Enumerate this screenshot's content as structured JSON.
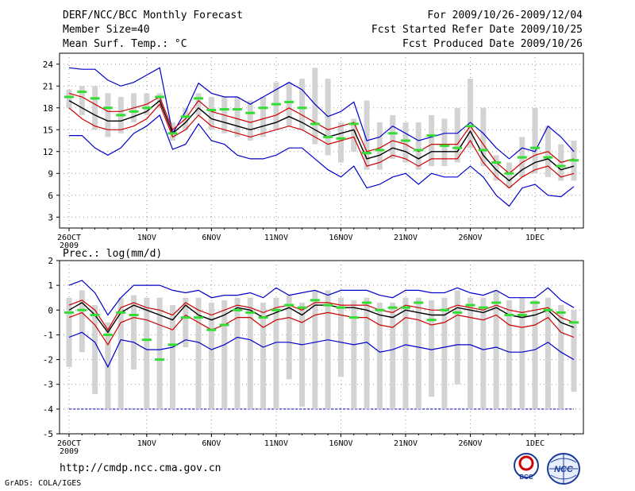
{
  "header": {
    "title": "DERF/NCC/BCC Monthly Forecast",
    "member": "Member Size=40",
    "variable": "Mean Surf. Temp.: °C",
    "period": "For 2009/10/26-2009/12/04",
    "start": "Fcst Started Refer Date 2009/10/25",
    "produced": "Fcst Produced Date 2009/10/26"
  },
  "footer": {
    "url": "http://cmdp.ncc.cma.gov.cn",
    "credit": "GrADS: COLA/IGES",
    "logo1": "BCC",
    "logo2": "NCC"
  },
  "colors": {
    "spread": "#d3d3d3",
    "extreme": "#0000cc",
    "sigma": "#cc0000",
    "mean": "#000000",
    "obs": "#33dd33",
    "grid": "#999999"
  },
  "chart_data": [
    {
      "type": "line",
      "title": "Mean Surf. Temp.: °C",
      "x_tick_labels": [
        "26OCT",
        "1NOV",
        "6NOV",
        "11NOV",
        "16NOV",
        "21NOV",
        "26NOV",
        "1DEC"
      ],
      "x_tick_days": [
        1,
        7,
        12,
        17,
        22,
        27,
        32,
        37
      ],
      "year_label": "2009",
      "days": 40,
      "ylim": [
        1.5,
        25.5
      ],
      "yticks": [
        3,
        6,
        9,
        12,
        15,
        18,
        21,
        24
      ],
      "grid": true,
      "series": [
        {
          "name": "max",
          "values": [
            23.5,
            23.3,
            23.3,
            21.8,
            21.0,
            21.5,
            22.5,
            23.5,
            14.5,
            17.5,
            21.4,
            20.0,
            19.5,
            19.5,
            18.5,
            19.5,
            20.5,
            21.5,
            20.5,
            18.5,
            16.8,
            17.5,
            18.8,
            13.5,
            14.0,
            15.5,
            14.5,
            13.5,
            14.0,
            14.5,
            14.5,
            16.0,
            14.5,
            12.5,
            11.0,
            12.5,
            12.0,
            15.5,
            14.0,
            12.0
          ]
        },
        {
          "name": "plus_sigma",
          "values": [
            20.0,
            19.5,
            18.5,
            17.5,
            17.5,
            18.0,
            18.5,
            19.5,
            15.0,
            16.5,
            19.0,
            17.5,
            17.0,
            16.5,
            16.0,
            16.5,
            17.0,
            18.0,
            17.0,
            16.0,
            15.0,
            15.5,
            16.0,
            12.0,
            12.5,
            13.5,
            13.0,
            12.0,
            13.0,
            13.0,
            13.0,
            15.5,
            13.0,
            10.5,
            9.0,
            10.5,
            11.5,
            12.0,
            10.5,
            11.0
          ]
        },
        {
          "name": "mean",
          "values": [
            19.0,
            18.0,
            17.0,
            16.2,
            16.2,
            16.8,
            17.5,
            19.0,
            14.5,
            16.0,
            18.0,
            16.5,
            16.0,
            15.5,
            15.0,
            15.5,
            16.0,
            16.8,
            16.0,
            15.0,
            14.0,
            14.5,
            15.0,
            11.0,
            11.5,
            12.5,
            12.0,
            11.0,
            12.0,
            12.0,
            12.0,
            14.8,
            11.5,
            9.5,
            8.0,
            9.5,
            10.5,
            11.0,
            9.5,
            10.0
          ]
        },
        {
          "name": "minus_sigma",
          "values": [
            18.0,
            16.5,
            15.5,
            15.0,
            15.0,
            15.5,
            16.5,
            18.5,
            14.0,
            15.0,
            17.0,
            15.5,
            15.0,
            14.5,
            14.0,
            14.5,
            15.0,
            15.5,
            15.0,
            14.0,
            13.0,
            13.5,
            14.0,
            10.0,
            10.5,
            11.5,
            11.0,
            10.0,
            11.0,
            11.0,
            11.0,
            13.5,
            10.5,
            8.5,
            7.0,
            8.5,
            9.5,
            10.0,
            8.5,
            9.0
          ]
        },
        {
          "name": "min",
          "values": [
            14.2,
            14.2,
            12.5,
            11.5,
            12.5,
            14.5,
            15.5,
            17.0,
            12.3,
            13.0,
            15.8,
            13.5,
            13.0,
            11.5,
            11.0,
            11.0,
            11.5,
            12.5,
            12.5,
            11.0,
            9.5,
            8.5,
            10.0,
            7.0,
            7.5,
            8.5,
            9.0,
            7.5,
            9.0,
            8.5,
            8.5,
            10.0,
            8.5,
            6.0,
            4.5,
            7.0,
            7.5,
            6.0,
            5.8,
            7.2
          ]
        },
        {
          "name": "observed",
          "values": [
            19.5,
            20.2,
            19.3,
            18.0,
            17.0,
            17.5,
            18.0,
            19.5,
            14.5,
            16.8,
            19.3,
            17.7,
            17.8,
            17.8,
            17.3,
            18.0,
            18.5,
            18.8,
            18.0,
            15.8,
            14.0,
            13.8,
            15.8,
            11.8,
            12.2,
            14.5,
            13.5,
            12.2,
            14.2,
            12.8,
            12.5,
            15.5,
            12.2,
            10.5,
            9.0,
            11.2,
            12.5,
            11.2,
            10.0,
            10.8
          ]
        }
      ],
      "box_high": [
        20.5,
        21.0,
        21.0,
        20.0,
        19.5,
        20.0,
        20.0,
        20.0,
        16.0,
        18.0,
        20.0,
        19.5,
        19.5,
        19.5,
        19.0,
        19.5,
        21.5,
        21.5,
        22.0,
        23.5,
        22.0,
        16.0,
        16.5,
        19.0,
        16.0,
        17.0,
        16.0,
        16.0,
        17.0,
        16.5,
        18.0,
        22.0,
        18.0,
        11.5,
        10.5,
        14.0,
        18.0,
        15.5,
        13.0,
        13.5
      ],
      "box_low": [
        18.0,
        17.0,
        15.0,
        14.0,
        14.5,
        16.0,
        17.0,
        18.0,
        13.5,
        15.0,
        17.0,
        15.0,
        14.5,
        14.0,
        13.5,
        14.0,
        15.0,
        15.5,
        15.0,
        13.0,
        11.5,
        10.5,
        12.0,
        9.5,
        9.5,
        11.0,
        10.5,
        9.5,
        10.0,
        10.0,
        10.5,
        12.5,
        10.0,
        8.0,
        7.0,
        8.5,
        9.0,
        8.5,
        8.0,
        8.0
      ]
    },
    {
      "type": "line",
      "title": "Prec.: log(mm/d)",
      "x_tick_labels": [
        "26OCT",
        "1NOV",
        "6NOV",
        "11NOV",
        "16NOV",
        "21NOV",
        "26NOV",
        "1DEC"
      ],
      "x_tick_days": [
        1,
        7,
        12,
        17,
        22,
        27,
        32,
        37
      ],
      "year_label": "2009",
      "days": 40,
      "ylim": [
        -5,
        2
      ],
      "yticks": [
        -5,
        -4,
        -3,
        -2,
        -1,
        0,
        1,
        2
      ],
      "grid": true,
      "baseline": -4,
      "series": [
        {
          "name": "max",
          "values": [
            1.0,
            1.2,
            0.7,
            -0.2,
            0.5,
            1.0,
            1.0,
            1.0,
            0.8,
            0.7,
            0.8,
            0.5,
            0.6,
            0.6,
            0.7,
            0.5,
            0.9,
            0.6,
            0.7,
            0.8,
            0.6,
            0.8,
            0.8,
            0.8,
            0.6,
            0.5,
            0.8,
            0.8,
            0.7,
            0.7,
            0.9,
            0.7,
            0.6,
            0.8,
            0.5,
            0.5,
            0.5,
            0.9,
            0.4,
            0.1
          ]
        },
        {
          "name": "plus_sigma",
          "values": [
            0.2,
            0.4,
            0.0,
            -0.8,
            0.1,
            0.3,
            0.1,
            0.0,
            -0.2,
            0.3,
            0.0,
            -0.2,
            0.0,
            0.2,
            0.1,
            -0.1,
            0.1,
            0.2,
            0.0,
            0.3,
            0.3,
            0.2,
            0.2,
            0.2,
            0.0,
            -0.1,
            0.2,
            0.1,
            0.0,
            0.0,
            0.2,
            0.1,
            0.0,
            0.2,
            0.0,
            -0.1,
            0.0,
            0.1,
            -0.3,
            -0.5
          ]
        },
        {
          "name": "mean",
          "values": [
            0.0,
            0.3,
            -0.2,
            -0.9,
            -0.1,
            0.2,
            0.0,
            -0.2,
            -0.4,
            0.2,
            -0.2,
            -0.4,
            -0.2,
            0.1,
            0.0,
            -0.3,
            -0.1,
            0.1,
            -0.2,
            0.2,
            0.2,
            0.1,
            0.1,
            0.0,
            -0.2,
            -0.3,
            0.0,
            -0.1,
            -0.2,
            -0.2,
            0.1,
            0.0,
            -0.1,
            0.1,
            -0.2,
            -0.3,
            -0.2,
            0.0,
            -0.5,
            -0.7
          ]
        },
        {
          "name": "minus_sigma",
          "values": [
            -0.3,
            -0.1,
            -0.6,
            -1.4,
            -0.5,
            -0.3,
            -0.4,
            -0.6,
            -0.8,
            -0.2,
            -0.5,
            -0.8,
            -0.6,
            -0.3,
            -0.3,
            -0.7,
            -0.4,
            -0.3,
            -0.5,
            -0.2,
            -0.1,
            -0.2,
            -0.3,
            -0.3,
            -0.6,
            -0.7,
            -0.3,
            -0.4,
            -0.6,
            -0.5,
            -0.2,
            -0.3,
            -0.4,
            -0.2,
            -0.6,
            -0.7,
            -0.6,
            -0.3,
            -0.9,
            -1.1
          ]
        },
        {
          "name": "min",
          "values": [
            -1.1,
            -0.9,
            -1.3,
            -2.3,
            -1.2,
            -1.3,
            -1.6,
            -1.6,
            -1.5,
            -1.2,
            -1.3,
            -1.6,
            -1.4,
            -1.1,
            -1.2,
            -1.5,
            -1.3,
            -1.3,
            -1.4,
            -1.3,
            -1.2,
            -1.3,
            -1.4,
            -1.3,
            -1.7,
            -1.6,
            -1.4,
            -1.5,
            -1.6,
            -1.5,
            -1.4,
            -1.4,
            -1.6,
            -1.5,
            -1.7,
            -1.7,
            -1.6,
            -1.3,
            -1.7,
            -2.0
          ]
        },
        {
          "name": "observed",
          "values": [
            -0.1,
            0.0,
            -0.2,
            -1.0,
            -0.1,
            -0.2,
            -1.2,
            -2.0,
            -1.4,
            -0.3,
            -0.3,
            -0.8,
            -0.6,
            0.0,
            -0.1,
            -0.3,
            0.0,
            0.2,
            0.1,
            0.4,
            0.2,
            0.1,
            -0.3,
            0.3,
            0.0,
            0.1,
            0.1,
            0.3,
            -0.4,
            0.0,
            -0.1,
            0.2,
            0.1,
            0.3,
            -0.2,
            -0.2,
            0.3,
            0.0,
            -0.1,
            -0.5
          ]
        }
      ],
      "box_high": [
        0.5,
        0.8,
        0.2,
        -0.5,
        0.5,
        0.6,
        0.5,
        0.5,
        0.2,
        0.5,
        0.5,
        0.3,
        0.4,
        0.5,
        0.5,
        0.3,
        0.5,
        0.6,
        0.3,
        0.8,
        0.8,
        0.5,
        0.4,
        0.5,
        0.3,
        0.3,
        0.5,
        0.5,
        0.4,
        0.5,
        0.8,
        0.5,
        0.5,
        0.8,
        0.4,
        0.5,
        0.4,
        0.5,
        0.2,
        0.0
      ],
      "box_low": [
        -2.3,
        -1.7,
        -3.4,
        -4.0,
        -4.0,
        -2.4,
        -4.0,
        -4.0,
        -4.0,
        -1.5,
        -4.0,
        -4.0,
        -4.0,
        -4.0,
        -4.0,
        -4.0,
        -4.0,
        -2.8,
        -3.9,
        -4.0,
        -4.0,
        -2.7,
        -4.0,
        -4.0,
        -4.0,
        -4.0,
        -4.0,
        -4.0,
        -3.5,
        -4.0,
        -3.0,
        -4.0,
        -4.0,
        -4.0,
        -4.0,
        -4.0,
        -4.0,
        -4.0,
        -4.0,
        -3.3
      ]
    }
  ]
}
